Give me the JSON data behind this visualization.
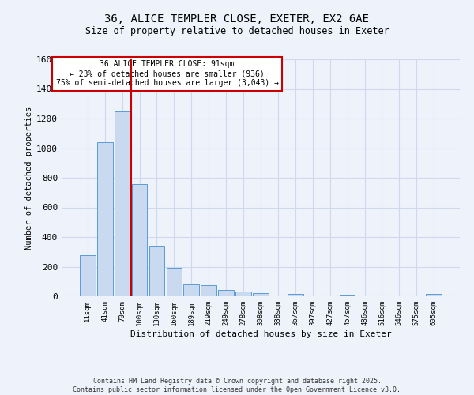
{
  "title_line1": "36, ALICE TEMPLER CLOSE, EXETER, EX2 6AE",
  "title_line2": "Size of property relative to detached houses in Exeter",
  "xlabel": "Distribution of detached houses by size in Exeter",
  "ylabel": "Number of detached properties",
  "bar_labels": [
    "11sqm",
    "41sqm",
    "70sqm",
    "100sqm",
    "130sqm",
    "160sqm",
    "189sqm",
    "219sqm",
    "249sqm",
    "278sqm",
    "308sqm",
    "338sqm",
    "367sqm",
    "397sqm",
    "427sqm",
    "457sqm",
    "486sqm",
    "516sqm",
    "546sqm",
    "575sqm",
    "605sqm"
  ],
  "bar_values": [
    280,
    1040,
    1250,
    760,
    335,
    190,
    80,
    75,
    45,
    30,
    20,
    0,
    15,
    0,
    0,
    5,
    0,
    0,
    0,
    0,
    15
  ],
  "bar_color": "#c9d9f0",
  "bar_edge_color": "#5b9bd5",
  "vline_x": 2.5,
  "vline_color": "#cc0000",
  "annotation_text": "36 ALICE TEMPLER CLOSE: 91sqm\n← 23% of detached houses are smaller (936)\n75% of semi-detached houses are larger (3,043) →",
  "annotation_box_color": "#ffffff",
  "annotation_box_edge": "#cc0000",
  "ylim": [
    0,
    1600
  ],
  "yticks": [
    0,
    200,
    400,
    600,
    800,
    1000,
    1200,
    1400,
    1600
  ],
  "grid_color": "#d0d8ee",
  "bg_color": "#eef2fb",
  "footer_line1": "Contains HM Land Registry data © Crown copyright and database right 2025.",
  "footer_line2": "Contains public sector information licensed under the Open Government Licence v3.0."
}
